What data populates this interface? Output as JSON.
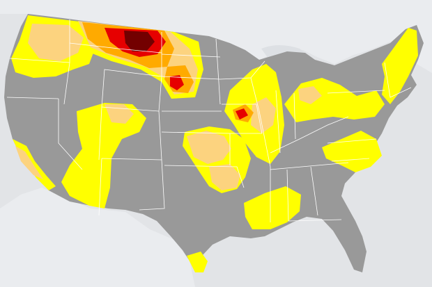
{
  "map": {
    "region": "contiguous-united-states",
    "colors": {
      "background": "#e2e4e7",
      "neighbor_land": "#eaecef",
      "water": "#dde0e4",
      "no_drought": "#999999",
      "abnormally_dry": "#ffff00",
      "moderate_drought": "#fcd37f",
      "severe_drought": "#ffaa00",
      "extreme_drought": "#e60000",
      "exceptional_drought": "#730000",
      "state_border": "#ffffff"
    },
    "categories": [
      {
        "id": "none",
        "color_key": "no_drought"
      },
      {
        "id": "D0",
        "color_key": "abnormally_dry"
      },
      {
        "id": "D1",
        "color_key": "moderate_drought"
      },
      {
        "id": "D2",
        "color_key": "severe_drought"
      },
      {
        "id": "D3",
        "color_key": "extreme_drought"
      },
      {
        "id": "D4",
        "color_key": "exceptional_drought"
      }
    ]
  }
}
